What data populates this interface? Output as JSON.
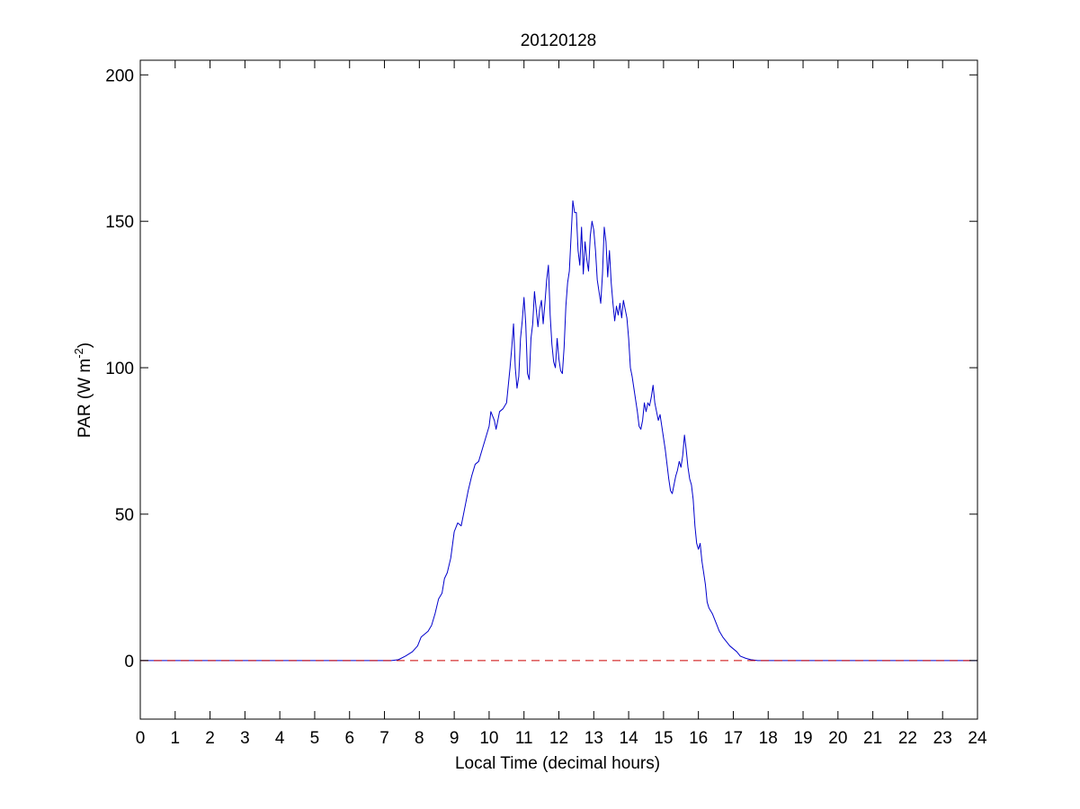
{
  "chart_data": {
    "type": "line",
    "title": "20120128",
    "xlabel": "Local Time (decimal hours)",
    "ylabel": {
      "main": "PAR (W m",
      "superscript": "-2",
      "close": ")"
    },
    "xlim": [
      0,
      24
    ],
    "ylim": [
      -20,
      205
    ],
    "xticks": [
      0,
      1,
      2,
      3,
      4,
      5,
      6,
      7,
      8,
      9,
      10,
      11,
      12,
      13,
      14,
      15,
      16,
      17,
      18,
      19,
      20,
      21,
      22,
      23,
      24
    ],
    "xtick_labels": [
      "0",
      "1",
      "2",
      "3",
      "4",
      "5",
      "6",
      "7",
      "8",
      "9",
      "10",
      "11",
      "12",
      "13",
      "14",
      "15",
      "16",
      "17",
      "18",
      "19",
      "20",
      "21",
      "22",
      "23",
      "24"
    ],
    "yticks": [
      0,
      50,
      100,
      150,
      200
    ],
    "ytick_labels": [
      "0",
      "50",
      "100",
      "150",
      "200"
    ],
    "grid": false,
    "series": [
      {
        "color": "#0000cc",
        "style": "solid",
        "points": [
          [
            0,
            0
          ],
          [
            7.2,
            0
          ],
          [
            7.4,
            0.3
          ],
          [
            7.6,
            1.5
          ],
          [
            7.8,
            3
          ],
          [
            7.95,
            5
          ],
          [
            8.05,
            8
          ],
          [
            8.15,
            9
          ],
          [
            8.25,
            10
          ],
          [
            8.35,
            12
          ],
          [
            8.45,
            16
          ],
          [
            8.55,
            21
          ],
          [
            8.65,
            23
          ],
          [
            8.72,
            28
          ],
          [
            8.8,
            30
          ],
          [
            8.9,
            35
          ],
          [
            9.0,
            44
          ],
          [
            9.1,
            47
          ],
          [
            9.2,
            46
          ],
          [
            9.3,
            52
          ],
          [
            9.4,
            58
          ],
          [
            9.5,
            63
          ],
          [
            9.6,
            67
          ],
          [
            9.7,
            68
          ],
          [
            9.8,
            72
          ],
          [
            9.9,
            76
          ],
          [
            10.0,
            80
          ],
          [
            10.05,
            85
          ],
          [
            10.15,
            82
          ],
          [
            10.2,
            79
          ],
          [
            10.3,
            85
          ],
          [
            10.4,
            86
          ],
          [
            10.5,
            88
          ],
          [
            10.6,
            100
          ],
          [
            10.65,
            107
          ],
          [
            10.7,
            115
          ],
          [
            10.75,
            100
          ],
          [
            10.8,
            93
          ],
          [
            10.85,
            97
          ],
          [
            10.9,
            110
          ],
          [
            10.95,
            116
          ],
          [
            11.0,
            124
          ],
          [
            11.05,
            115
          ],
          [
            11.1,
            98
          ],
          [
            11.15,
            96
          ],
          [
            11.2,
            110
          ],
          [
            11.25,
            115
          ],
          [
            11.3,
            126
          ],
          [
            11.35,
            120
          ],
          [
            11.4,
            114
          ],
          [
            11.45,
            120
          ],
          [
            11.5,
            123
          ],
          [
            11.55,
            115
          ],
          [
            11.6,
            122
          ],
          [
            11.65,
            130
          ],
          [
            11.7,
            135
          ],
          [
            11.75,
            118
          ],
          [
            11.8,
            108
          ],
          [
            11.85,
            102
          ],
          [
            11.9,
            100
          ],
          [
            11.95,
            110
          ],
          [
            12.0,
            103
          ],
          [
            12.05,
            99
          ],
          [
            12.1,
            98
          ],
          [
            12.15,
            107
          ],
          [
            12.2,
            121
          ],
          [
            12.25,
            129
          ],
          [
            12.3,
            133
          ],
          [
            12.35,
            145
          ],
          [
            12.4,
            157
          ],
          [
            12.45,
            153
          ],
          [
            12.5,
            153
          ],
          [
            12.55,
            140
          ],
          [
            12.6,
            135
          ],
          [
            12.65,
            148
          ],
          [
            12.7,
            132
          ],
          [
            12.75,
            143
          ],
          [
            12.8,
            137
          ],
          [
            12.85,
            133
          ],
          [
            12.9,
            145
          ],
          [
            12.95,
            150
          ],
          [
            13.0,
            147
          ],
          [
            13.05,
            140
          ],
          [
            13.1,
            130
          ],
          [
            13.15,
            126
          ],
          [
            13.2,
            122
          ],
          [
            13.25,
            132
          ],
          [
            13.3,
            148
          ],
          [
            13.35,
            143
          ],
          [
            13.4,
            131
          ],
          [
            13.45,
            140
          ],
          [
            13.5,
            129
          ],
          [
            13.55,
            122
          ],
          [
            13.6,
            116
          ],
          [
            13.65,
            121
          ],
          [
            13.7,
            118
          ],
          [
            13.75,
            122
          ],
          [
            13.8,
            117
          ],
          [
            13.85,
            123
          ],
          [
            13.9,
            120
          ],
          [
            13.95,
            117
          ],
          [
            14.0,
            110
          ],
          [
            14.05,
            100
          ],
          [
            14.1,
            97
          ],
          [
            14.15,
            93
          ],
          [
            14.2,
            89
          ],
          [
            14.25,
            85
          ],
          [
            14.3,
            80
          ],
          [
            14.35,
            79
          ],
          [
            14.4,
            82
          ],
          [
            14.45,
            88
          ],
          [
            14.5,
            85
          ],
          [
            14.55,
            88
          ],
          [
            14.6,
            87
          ],
          [
            14.65,
            90
          ],
          [
            14.7,
            94
          ],
          [
            14.75,
            88
          ],
          [
            14.8,
            85
          ],
          [
            14.85,
            82
          ],
          [
            14.9,
            84
          ],
          [
            14.95,
            80
          ],
          [
            15.0,
            76
          ],
          [
            15.05,
            72
          ],
          [
            15.1,
            67
          ],
          [
            15.15,
            62
          ],
          [
            15.2,
            58
          ],
          [
            15.25,
            57
          ],
          [
            15.3,
            60
          ],
          [
            15.35,
            63
          ],
          [
            15.4,
            65
          ],
          [
            15.45,
            68
          ],
          [
            15.5,
            66
          ],
          [
            15.55,
            70
          ],
          [
            15.6,
            77
          ],
          [
            15.65,
            72
          ],
          [
            15.7,
            66
          ],
          [
            15.75,
            62
          ],
          [
            15.8,
            60
          ],
          [
            15.85,
            55
          ],
          [
            15.9,
            46
          ],
          [
            15.95,
            40
          ],
          [
            16.0,
            38
          ],
          [
            16.05,
            40
          ],
          [
            16.1,
            34
          ],
          [
            16.15,
            30
          ],
          [
            16.2,
            26
          ],
          [
            16.25,
            20
          ],
          [
            16.3,
            18
          ],
          [
            16.4,
            16
          ],
          [
            16.5,
            13
          ],
          [
            16.6,
            10
          ],
          [
            16.7,
            8
          ],
          [
            16.8,
            6.5
          ],
          [
            16.9,
            5
          ],
          [
            17.0,
            4
          ],
          [
            17.1,
            3
          ],
          [
            17.2,
            1.5
          ],
          [
            17.35,
            0.8
          ],
          [
            17.5,
            0.3
          ],
          [
            17.7,
            0
          ],
          [
            24,
            0
          ]
        ]
      },
      {
        "color": "#cc0000",
        "style": "dashed",
        "points": [
          [
            0,
            0
          ],
          [
            24,
            0
          ]
        ]
      }
    ]
  }
}
